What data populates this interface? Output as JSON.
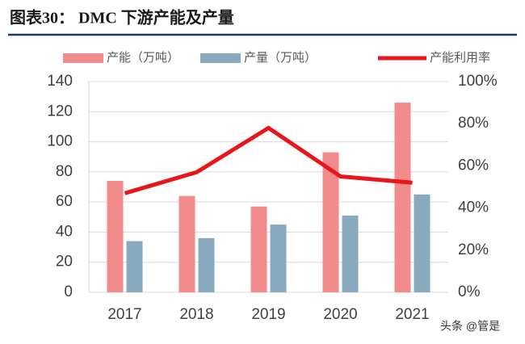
{
  "chart_data": {
    "type": "bar",
    "title": "图表30： DMC 下游产能及产量",
    "categories": [
      "2017",
      "2018",
      "2019",
      "2020",
      "2021"
    ],
    "series": [
      {
        "name": "产能（万吨）",
        "type": "bar",
        "color": "#f28b8c",
        "values": [
          74,
          64,
          57,
          93,
          126
        ]
      },
      {
        "name": "产量（万吨）",
        "type": "bar",
        "color": "#89a9bf",
        "values": [
          34,
          36,
          45,
          51,
          65
        ]
      },
      {
        "name": "产能利用率",
        "type": "line",
        "axis": "y2",
        "color": "#e8161b",
        "values": [
          47,
          57,
          78,
          55,
          52
        ]
      }
    ],
    "ylim": [
      0,
      140
    ],
    "yticks": [
      0,
      20,
      40,
      60,
      80,
      100,
      120,
      140
    ],
    "y2lim": [
      0,
      100
    ],
    "y2ticks": [
      {
        "value": 0,
        "label": "0%"
      },
      {
        "value": 20,
        "label": "20%"
      },
      {
        "value": 40,
        "label": "40%"
      },
      {
        "value": 60,
        "label": "60%"
      },
      {
        "value": 80,
        "label": "80%"
      },
      {
        "value": 100,
        "label": "100%"
      }
    ],
    "grid": true
  },
  "watermark": "头条 @管是"
}
